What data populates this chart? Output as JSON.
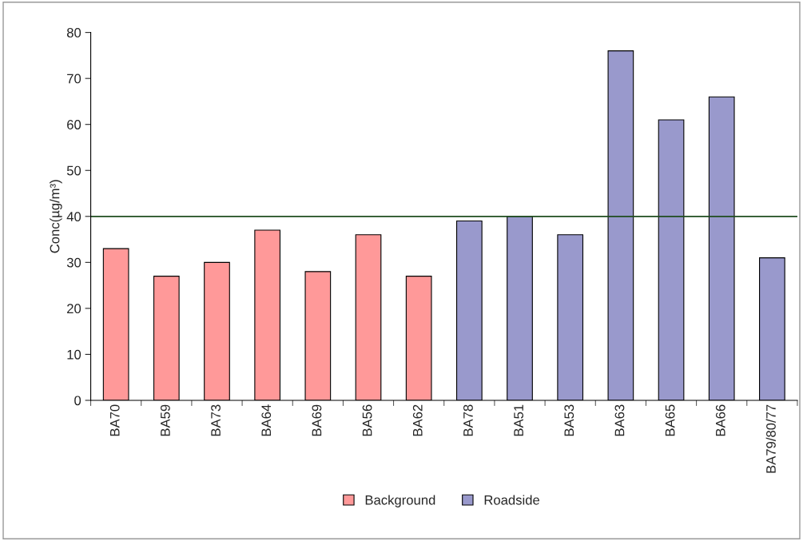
{
  "chart_data": {
    "type": "bar",
    "ylabel": "Conc(µg/m³)",
    "categories": [
      "BA70",
      "BA59",
      "BA73",
      "BA64",
      "BA69",
      "BA56",
      "BA62",
      "BA78",
      "BA51",
      "BA53",
      "BA63",
      "BA65",
      "BA66",
      "BA79/80/77"
    ],
    "series": [
      {
        "name": "Background",
        "color": "#ff9999",
        "values": [
          33,
          27,
          30,
          37,
          28,
          36,
          27,
          null,
          null,
          null,
          null,
          null,
          null,
          null
        ]
      },
      {
        "name": "Roadside",
        "color": "#9999cc",
        "values": [
          null,
          null,
          null,
          null,
          null,
          null,
          null,
          39,
          40,
          36,
          76,
          61,
          66,
          31
        ]
      }
    ],
    "ylim": [
      0,
      80
    ],
    "yticks": [
      0,
      10,
      20,
      30,
      40,
      50,
      60,
      70,
      80
    ],
    "ref_lines": [
      {
        "axis": "y",
        "value": 40,
        "color": "#1f4d1f"
      }
    ],
    "grid": false,
    "legend": "bottom"
  }
}
